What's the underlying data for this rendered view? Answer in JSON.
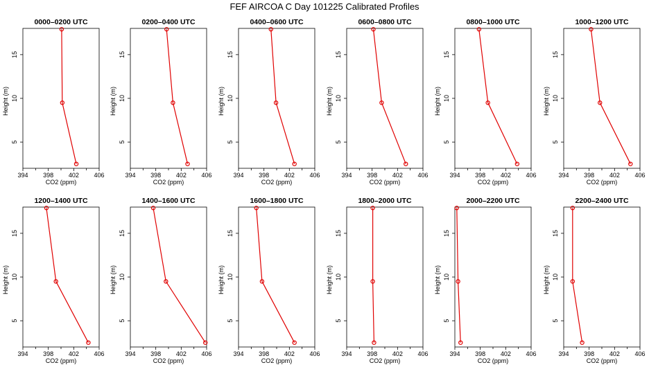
{
  "title": "FEF AIRCOA C  Day 101225  Calibrated Profiles",
  "colors": {
    "series": "#e00000",
    "axes": "#000000",
    "background": "#ffffff"
  },
  "chart_data": [
    {
      "type": "line",
      "title": "0000–0200 UTC",
      "xlabel": "CO2 (ppm)",
      "ylabel": "Height (m)",
      "xlim": [
        394,
        406
      ],
      "ylim": [
        2,
        18
      ],
      "xticks": [
        394,
        398,
        402,
        406
      ],
      "yticks": [
        5,
        10,
        15
      ],
      "grid": false,
      "x": [
        402.4,
        400.2,
        400.1
      ],
      "y": [
        2.5,
        9.5,
        17.9
      ]
    },
    {
      "type": "line",
      "title": "0200–0400 UTC",
      "xlabel": "CO2 (ppm)",
      "ylabel": "Height (m)",
      "xlim": [
        394,
        406
      ],
      "ylim": [
        2,
        18
      ],
      "xticks": [
        394,
        398,
        402,
        406
      ],
      "yticks": [
        5,
        10,
        15
      ],
      "grid": false,
      "x": [
        403.0,
        400.7,
        399.7
      ],
      "y": [
        2.5,
        9.5,
        17.9
      ]
    },
    {
      "type": "line",
      "title": "0400–0600 UTC",
      "xlabel": "CO2 (ppm)",
      "ylabel": "Height (m)",
      "xlim": [
        394,
        406
      ],
      "ylim": [
        2,
        18
      ],
      "xticks": [
        394,
        398,
        402,
        406
      ],
      "yticks": [
        5,
        10,
        15
      ],
      "grid": false,
      "x": [
        402.8,
        399.9,
        399.1
      ],
      "y": [
        2.5,
        9.5,
        17.9
      ]
    },
    {
      "type": "line",
      "title": "0600–0800 UTC",
      "xlabel": "CO2 (ppm)",
      "ylabel": "Height (m)",
      "xlim": [
        394,
        406
      ],
      "ylim": [
        2,
        18
      ],
      "xticks": [
        394,
        398,
        402,
        406
      ],
      "yticks": [
        5,
        10,
        15
      ],
      "grid": false,
      "x": [
        403.3,
        399.5,
        398.2
      ],
      "y": [
        2.5,
        9.5,
        17.9
      ]
    },
    {
      "type": "line",
      "title": "0800–1000 UTC",
      "xlabel": "CO2 (ppm)",
      "ylabel": "Height (m)",
      "xlim": [
        394,
        406
      ],
      "ylim": [
        2,
        18
      ],
      "xticks": [
        394,
        398,
        402,
        406
      ],
      "yticks": [
        5,
        10,
        15
      ],
      "grid": false,
      "x": [
        403.8,
        399.2,
        397.8
      ],
      "y": [
        2.5,
        9.5,
        17.9
      ]
    },
    {
      "type": "line",
      "title": "1000–1200 UTC",
      "xlabel": "CO2 (ppm)",
      "ylabel": "Height (m)",
      "xlim": [
        394,
        406
      ],
      "ylim": [
        2,
        18
      ],
      "xticks": [
        394,
        398,
        402,
        406
      ],
      "yticks": [
        5,
        10,
        15
      ],
      "grid": false,
      "x": [
        404.5,
        399.7,
        398.3
      ],
      "y": [
        2.5,
        9.5,
        17.9
      ]
    },
    {
      "type": "line",
      "title": "1200–1400 UTC",
      "xlabel": "CO2 (ppm)",
      "ylabel": "Height (m)",
      "xlim": [
        394,
        406
      ],
      "ylim": [
        2,
        18
      ],
      "xticks": [
        394,
        398,
        402,
        406
      ],
      "yticks": [
        5,
        10,
        15
      ],
      "grid": false,
      "x": [
        404.3,
        399.2,
        397.7
      ],
      "y": [
        2.5,
        9.5,
        17.9
      ]
    },
    {
      "type": "line",
      "title": "1400–1600 UTC",
      "xlabel": "CO2 (ppm)",
      "ylabel": "Height (m)",
      "xlim": [
        394,
        406
      ],
      "ylim": [
        2,
        18
      ],
      "xticks": [
        394,
        398,
        402,
        406
      ],
      "yticks": [
        5,
        10,
        15
      ],
      "grid": false,
      "x": [
        405.8,
        399.6,
        397.6
      ],
      "y": [
        2.5,
        9.5,
        17.9
      ]
    },
    {
      "type": "line",
      "title": "1600–1800 UTC",
      "xlabel": "CO2 (ppm)",
      "ylabel": "Height (m)",
      "xlim": [
        394,
        406
      ],
      "ylim": [
        2,
        18
      ],
      "xticks": [
        394,
        398,
        402,
        406
      ],
      "yticks": [
        5,
        10,
        15
      ],
      "grid": false,
      "x": [
        402.8,
        397.7,
        396.8
      ],
      "y": [
        2.5,
        9.5,
        17.9
      ]
    },
    {
      "type": "line",
      "title": "1800–2000 UTC",
      "xlabel": "CO2 (ppm)",
      "ylabel": "Height (m)",
      "xlim": [
        394,
        406
      ],
      "ylim": [
        2,
        18
      ],
      "xticks": [
        394,
        398,
        402,
        406
      ],
      "yticks": [
        5,
        10,
        15
      ],
      "grid": false,
      "x": [
        398.3,
        398.1,
        398.1
      ],
      "y": [
        2.5,
        9.5,
        17.9
      ]
    },
    {
      "type": "line",
      "title": "2000–2200 UTC",
      "xlabel": "CO2 (ppm)",
      "ylabel": "Height (m)",
      "xlim": [
        394,
        406
      ],
      "ylim": [
        2,
        18
      ],
      "xticks": [
        394,
        398,
        402,
        406
      ],
      "yticks": [
        5,
        10,
        15
      ],
      "grid": false,
      "x": [
        394.9,
        394.5,
        394.3
      ],
      "y": [
        2.5,
        9.5,
        17.9
      ]
    },
    {
      "type": "line",
      "title": "2200–2400 UTC",
      "xlabel": "CO2 (ppm)",
      "ylabel": "Height (m)",
      "xlim": [
        394,
        406
      ],
      "ylim": [
        2,
        18
      ],
      "xticks": [
        394,
        398,
        402,
        406
      ],
      "yticks": [
        5,
        10,
        15
      ],
      "grid": false,
      "x": [
        396.9,
        395.4,
        395.4
      ],
      "y": [
        2.5,
        9.5,
        17.9
      ]
    }
  ]
}
